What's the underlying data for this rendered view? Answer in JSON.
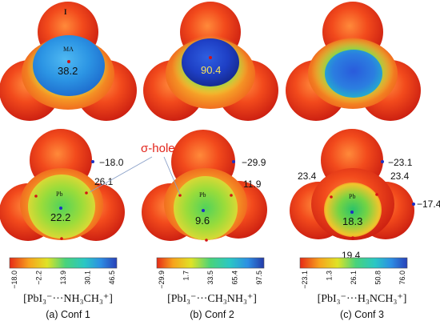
{
  "top": {
    "a": {
      "atom_i": "I",
      "atom_ma": "MA",
      "value": "38.2"
    },
    "b": {
      "value": "90.4"
    }
  },
  "bottom": {
    "sigma_hole": "σ-hole",
    "a": {
      "atom": "Pb",
      "center": "22.2",
      "topright": "−18.0",
      "side": "26.1"
    },
    "b": {
      "atom": "Pb",
      "center": "9.6",
      "topright": "−29.9",
      "side": "11.9"
    },
    "c": {
      "atom": "Pb",
      "center": "18.3",
      "topright": "−23.1",
      "side_right": "23.4",
      "side_left": "23.4",
      "far_right": "−17.4",
      "bottom": "19.4"
    }
  },
  "colorbars": {
    "a": {
      "ticks": [
        "−18.0",
        "−2.2",
        "13.9",
        "30.1",
        "46.5"
      ]
    },
    "b": {
      "ticks": [
        "−29.9",
        "1.7",
        "33.5",
        "65.4",
        "97.5"
      ]
    },
    "c": {
      "ticks": [
        "−23.1",
        "1.3",
        "26.1",
        "50.8",
        "76.0"
      ]
    }
  },
  "captions": {
    "a": {
      "formula": "[PbI₃⁻···NH₃CH₃⁺]",
      "label": "(a) Conf 1"
    },
    "b": {
      "formula": "[PbI₃⁻···CH₃NH₃⁺]",
      "label": "(b) Conf 2"
    },
    "c": {
      "formula": "[PbI₃⁻···H₃NCH₃⁺]",
      "label": "(c) Conf 3"
    }
  },
  "colors": {
    "red": "#e8281a",
    "orange": "#f7941d",
    "yellow": "#d7e021",
    "green": "#5fcf5a",
    "teal": "#31c7b8",
    "cyan": "#21a9e6",
    "blue": "#2360d8",
    "dark_blue": "#1a2f9a",
    "marker_red": "#d41414",
    "marker_blue": "#1d2fc4"
  }
}
